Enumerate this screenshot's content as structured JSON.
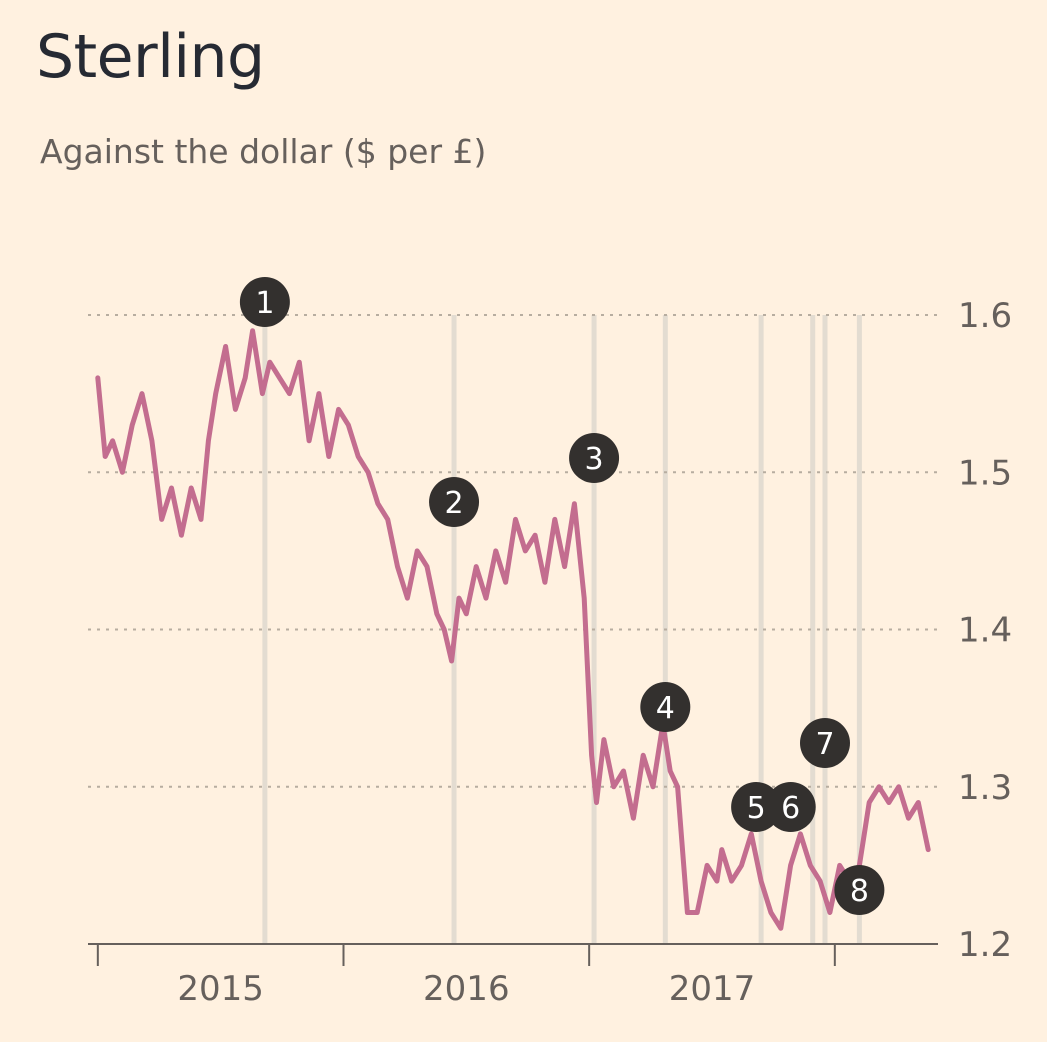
{
  "chart_data": {
    "type": "line",
    "title": "Sterling",
    "subtitle": "Against the dollar ($ per £)",
    "ylabel": "$ per £",
    "ylim": [
      1.2,
      1.6
    ],
    "yticks": [
      "1.6",
      "1.5",
      "1.4",
      "1.3",
      "1.2"
    ],
    "ytick_values": [
      1.6,
      1.5,
      1.4,
      1.3,
      1.2
    ],
    "xrange": [
      2014.26,
      2017.72
    ],
    "year_boundaries": [
      2014.3,
      2015.3,
      2016.3,
      2017.3
    ],
    "xticks": [
      "2015",
      "2016",
      "2017"
    ],
    "xtick_values": [
      2014.8,
      2015.8,
      2016.8
    ],
    "grid": "horizontal dotted",
    "series": [
      {
        "name": "Sterling ($ per £)",
        "color": "#c36d8f",
        "x": [
          2014.3,
          2014.33,
          2014.36,
          2014.4,
          2014.44,
          2014.48,
          2014.52,
          2014.56,
          2014.6,
          2014.64,
          2014.68,
          2014.72,
          2014.75,
          2014.78,
          2014.82,
          2014.86,
          2014.9,
          2014.93,
          2014.97,
          2015.0,
          2015.04,
          2015.08,
          2015.12,
          2015.16,
          2015.2,
          2015.24,
          2015.28,
          2015.32,
          2015.36,
          2015.4,
          2015.44,
          2015.48,
          2015.52,
          2015.56,
          2015.6,
          2015.64,
          2015.68,
          2015.71,
          2015.74,
          2015.77,
          2015.8,
          2015.84,
          2015.88,
          2015.92,
          2015.96,
          2016.0,
          2016.04,
          2016.08,
          2016.12,
          2016.16,
          2016.2,
          2016.24,
          2016.28,
          2016.31,
          2016.33,
          2016.36,
          2016.4,
          2016.44,
          2016.48,
          2016.52,
          2016.56,
          2016.6,
          2016.63,
          2016.66,
          2016.7,
          2016.74,
          2016.78,
          2016.82,
          2016.84,
          2016.88,
          2016.92,
          2016.96,
          2017.0,
          2017.04,
          2017.08,
          2017.12,
          2017.16,
          2017.2,
          2017.24,
          2017.28,
          2017.32,
          2017.36,
          2017.4,
          2017.44,
          2017.48,
          2017.52,
          2017.56,
          2017.6,
          2017.64,
          2017.68
        ],
        "values": [
          1.56,
          1.51,
          1.52,
          1.5,
          1.53,
          1.55,
          1.52,
          1.47,
          1.49,
          1.46,
          1.49,
          1.47,
          1.52,
          1.55,
          1.58,
          1.54,
          1.56,
          1.59,
          1.55,
          1.57,
          1.56,
          1.55,
          1.57,
          1.52,
          1.55,
          1.51,
          1.54,
          1.53,
          1.51,
          1.5,
          1.48,
          1.47,
          1.44,
          1.42,
          1.45,
          1.44,
          1.41,
          1.4,
          1.38,
          1.42,
          1.41,
          1.44,
          1.42,
          1.45,
          1.43,
          1.47,
          1.45,
          1.46,
          1.43,
          1.47,
          1.44,
          1.48,
          1.42,
          1.32,
          1.29,
          1.33,
          1.3,
          1.31,
          1.28,
          1.32,
          1.3,
          1.34,
          1.31,
          1.3,
          1.22,
          1.22,
          1.25,
          1.24,
          1.26,
          1.24,
          1.25,
          1.27,
          1.24,
          1.22,
          1.21,
          1.25,
          1.27,
          1.25,
          1.24,
          1.22,
          1.25,
          1.24,
          1.25,
          1.29,
          1.3,
          1.29,
          1.3,
          1.28,
          1.29,
          1.26
        ]
      }
    ],
    "events": [
      {
        "label": "1",
        "x": 2014.98
      },
      {
        "label": "2",
        "x": 2015.75
      },
      {
        "label": "3",
        "x": 2016.32
      },
      {
        "label": "4",
        "x": 2016.61
      },
      {
        "label": "5",
        "x": 2017.0
      },
      {
        "label": "6",
        "x": 2017.21
      },
      {
        "label": "7",
        "x": 2017.26
      },
      {
        "label": "8",
        "x": 2017.4
      }
    ]
  },
  "colors": {
    "background": "#fff1e0",
    "line": "#c36d8f",
    "event_line": "#e3dcd1",
    "gridline": "#b7ada0",
    "axis": "#66605c",
    "marker": "#33302e"
  }
}
